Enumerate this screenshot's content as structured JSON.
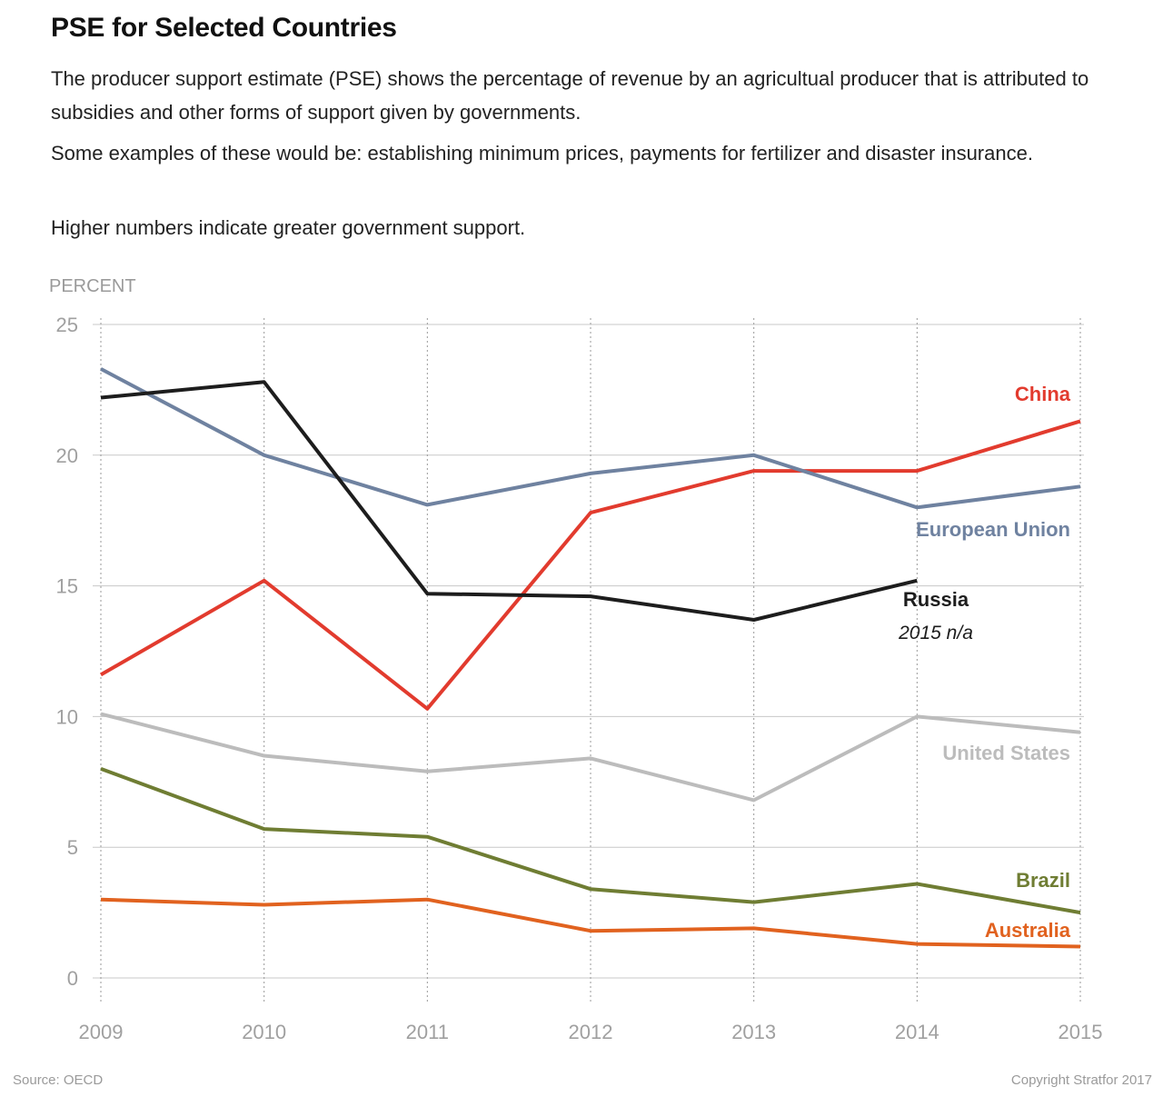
{
  "title": "PSE for Selected Countries",
  "description": [
    "The producer support estimate (PSE) shows the percentage of revenue by an agricultual producer that is attributed to subsidies and other forms of support given by governments.",
    "Some examples of these would be: establishing minimum prices, payments for fertilizer and disaster insurance.",
    "Higher numbers indicate greater government support."
  ],
  "source": "Source: OECD",
  "copyright": "Copyright Stratfor 2017",
  "chart_data": {
    "type": "line",
    "ylabel": "PERCENT",
    "ylim": [
      0,
      25
    ],
    "yticks": [
      0,
      5,
      10,
      15,
      20,
      25
    ],
    "x": [
      2009,
      2010,
      2011,
      2012,
      2013,
      2014,
      2015
    ],
    "grid": "horizontal solid, vertical dotted",
    "series": [
      {
        "name": "China",
        "color": "#e23b2e",
        "values": [
          11.6,
          15.2,
          10.3,
          17.8,
          19.4,
          19.4,
          21.3
        ]
      },
      {
        "name": "European Union",
        "color": "#6f82a0",
        "values": [
          23.3,
          20.0,
          18.1,
          19.3,
          20.0,
          18.0,
          18.8
        ]
      },
      {
        "name": "Russia",
        "color": "#1d1d1d",
        "values": [
          22.2,
          22.8,
          14.7,
          14.6,
          13.7,
          15.2,
          null
        ],
        "note": "2015 n/a"
      },
      {
        "name": "United States",
        "color": "#bcbcbc",
        "values": [
          10.1,
          8.5,
          7.9,
          8.4,
          6.8,
          10.0,
          9.4
        ]
      },
      {
        "name": "Brazil",
        "color": "#6f7d33",
        "values": [
          8.0,
          5.7,
          5.4,
          3.4,
          2.9,
          3.6,
          2.5
        ]
      },
      {
        "name": "Australia",
        "color": "#e1621f",
        "values": [
          3.0,
          2.8,
          3.0,
          1.8,
          1.9,
          1.3,
          1.2
        ]
      }
    ]
  }
}
